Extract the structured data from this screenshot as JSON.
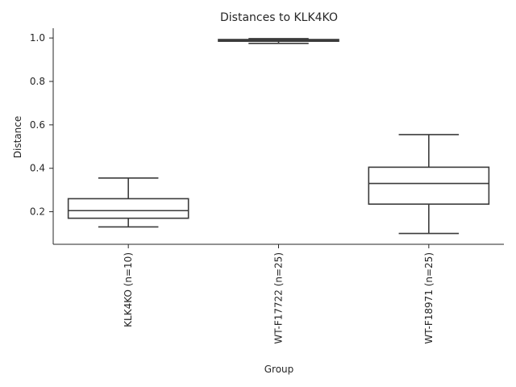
{
  "chart_data": {
    "type": "box",
    "title": "Distances to KLK4KO",
    "xlabel": "Group",
    "ylabel": "Distance",
    "ylim": [
      0.05,
      1.045
    ],
    "yticks": [
      0.2,
      0.4,
      0.6,
      0.8,
      1.0
    ],
    "ytick_labels": [
      "0.2",
      "0.4",
      "0.6",
      "0.8",
      "1.0"
    ],
    "grid": false,
    "categories": [
      "KLK4KO (n=10)",
      "WT-F17722 (n=25)",
      "WT-F18971 (n=25)"
    ],
    "boxes": [
      {
        "whisker_low": 0.13,
        "q1": 0.17,
        "median": 0.205,
        "q3": 0.26,
        "whisker_high": 0.355
      },
      {
        "whisker_low": 0.975,
        "q1": 0.985,
        "median": 0.99,
        "q3": 0.993,
        "whisker_high": 0.997
      },
      {
        "whisker_low": 0.1,
        "q1": 0.235,
        "median": 0.33,
        "q3": 0.405,
        "whisker_high": 0.555
      }
    ],
    "colors": {
      "box_edge": "#3b3b3b",
      "box_fill": "#ffffff",
      "axis": "#262626"
    }
  }
}
